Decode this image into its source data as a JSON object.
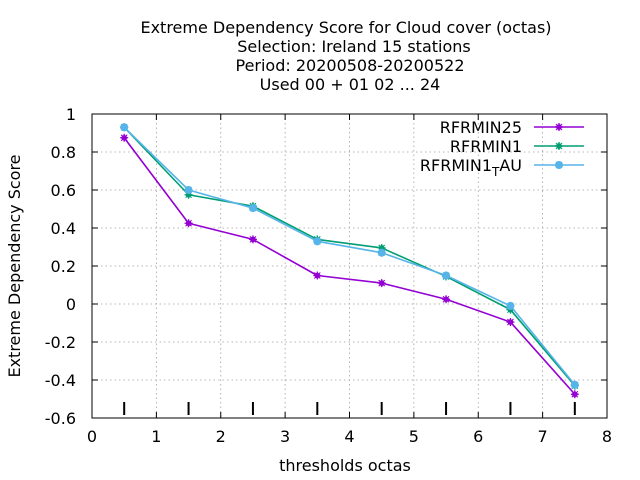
{
  "chart_data": {
    "type": "line",
    "title_lines": [
      "Extreme Dependency Score  for Cloud cover (octas)",
      "Selection: Ireland      15 stations",
      "Period: 20200508-20200522",
      "Used  00 + 01 02 ... 24"
    ],
    "xlabel": "thresholds octas",
    "ylabel": "Extreme Dependency Score",
    "xlim": [
      0,
      8
    ],
    "ylim": [
      -0.6,
      1
    ],
    "xticks": [
      "0",
      "1",
      "2",
      "3",
      "4",
      "5",
      "6",
      "7",
      "8"
    ],
    "yticks": [
      "1",
      "0.8",
      "0.6",
      "0.4",
      "0.2",
      "0",
      "-0.2",
      "-0.4",
      "-0.6"
    ],
    "grid": true,
    "legend_position": "top-right",
    "x": [
      0.5,
      1.5,
      2.5,
      3.5,
      4.5,
      5.5,
      6.5,
      7.5
    ],
    "series": [
      {
        "name": "RFRMIN25",
        "color": "#9400d3",
        "values": [
          0.875,
          0.425,
          0.34,
          0.15,
          0.11,
          0.025,
          -0.095,
          -0.475
        ]
      },
      {
        "name": "RFRMIN1",
        "color": "#009e73",
        "values": [
          0.93,
          0.575,
          0.515,
          0.34,
          0.295,
          0.145,
          -0.03,
          -0.43
        ]
      },
      {
        "name_base": "RFRMIN1",
        "name_sub": "T",
        "name_rest": "AU",
        "color": "#56b4e9",
        "values": [
          0.93,
          0.6,
          0.505,
          0.33,
          0.27,
          0.15,
          -0.01,
          -0.425
        ]
      }
    ]
  }
}
